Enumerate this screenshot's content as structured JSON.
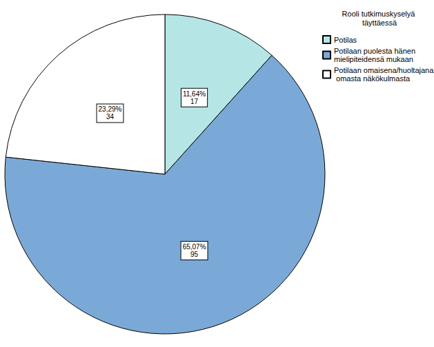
{
  "chart_data": {
    "type": "pie",
    "legend_title": "Rooli tutkimuskyselyä täyttäessä",
    "categories": [
      "Potilas",
      "Potilaan puolesta hänen mielipiteidensä mukaan",
      "Potilaan omaisena/huoltajana omasta näkökulmasta"
    ],
    "values": [
      11.64,
      65.07,
      23.29
    ],
    "value_labels": [
      "11,64%",
      "65,07%",
      "23,29%"
    ],
    "counts": [
      17,
      95,
      34
    ],
    "colors": [
      "#b5e6e5",
      "#7ba9d7",
      "#ffffff"
    ],
    "data_labels": true,
    "legend": "top-right"
  }
}
